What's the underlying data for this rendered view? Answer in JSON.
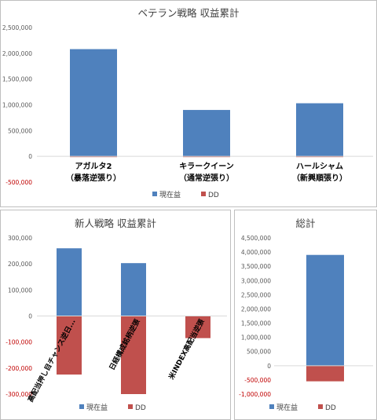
{
  "colors": {
    "profit": "#4f81bd",
    "dd": "#c0504d",
    "axis": "#d9d9d9",
    "tick": "#595959",
    "negtick": "#c00000"
  },
  "chart_data": [
    {
      "type": "bar",
      "title": "ベテラン戦略 収益累計",
      "categories": [
        [
          "アガルタ2",
          "（暴落逆張り）"
        ],
        [
          "キラークイーン",
          "（通常逆張り）"
        ],
        [
          "ハールシャム",
          "（新興順張り）"
        ]
      ],
      "series": [
        {
          "name": "現在益",
          "values": [
            2080000,
            900000,
            1030000
          ]
        },
        {
          "name": "DD",
          "values": [
            -15000,
            -15000,
            -15000
          ]
        }
      ],
      "ylim": [
        -500000,
        2500000
      ],
      "yticks": [
        "-500,000",
        "0",
        "500,000",
        "1,000,000",
        "1,500,000",
        "2,000,000",
        "2,500,000"
      ],
      "grid": false,
      "legend": "bottom"
    },
    {
      "type": "bar",
      "title": "新人戦略 収益累計",
      "categories": [
        "高配当押し目チャンス逆日...",
        "日経構成銘柄逆張",
        "米INDEX高配当逆張"
      ],
      "series": [
        {
          "name": "現在益",
          "values": [
            260000,
            203000,
            0
          ]
        },
        {
          "name": "DD",
          "values": [
            -225000,
            -300000,
            -85000
          ]
        }
      ],
      "ylim": [
        -300000,
        300000
      ],
      "yticks": [
        "-300,000",
        "-200,000",
        "-100,000",
        "0",
        "100,000",
        "200,000",
        "300,000"
      ],
      "grid": false,
      "legend": "bottom"
    },
    {
      "type": "bar",
      "title": "総計",
      "categories": [
        ""
      ],
      "series": [
        {
          "name": "現在益",
          "values": [
            3900000
          ]
        },
        {
          "name": "DD",
          "values": [
            -550000
          ]
        }
      ],
      "ylim": [
        -1000000,
        4500000
      ],
      "yticks": [
        "-1,000,000",
        "-500,000",
        "0",
        "500,000",
        "1,000,000",
        "1,500,000",
        "2,000,000",
        "2,500,000",
        "3,000,000",
        "3,500,000",
        "4,000,000",
        "4,500,000"
      ],
      "grid": false,
      "legend": "bottom"
    }
  ]
}
